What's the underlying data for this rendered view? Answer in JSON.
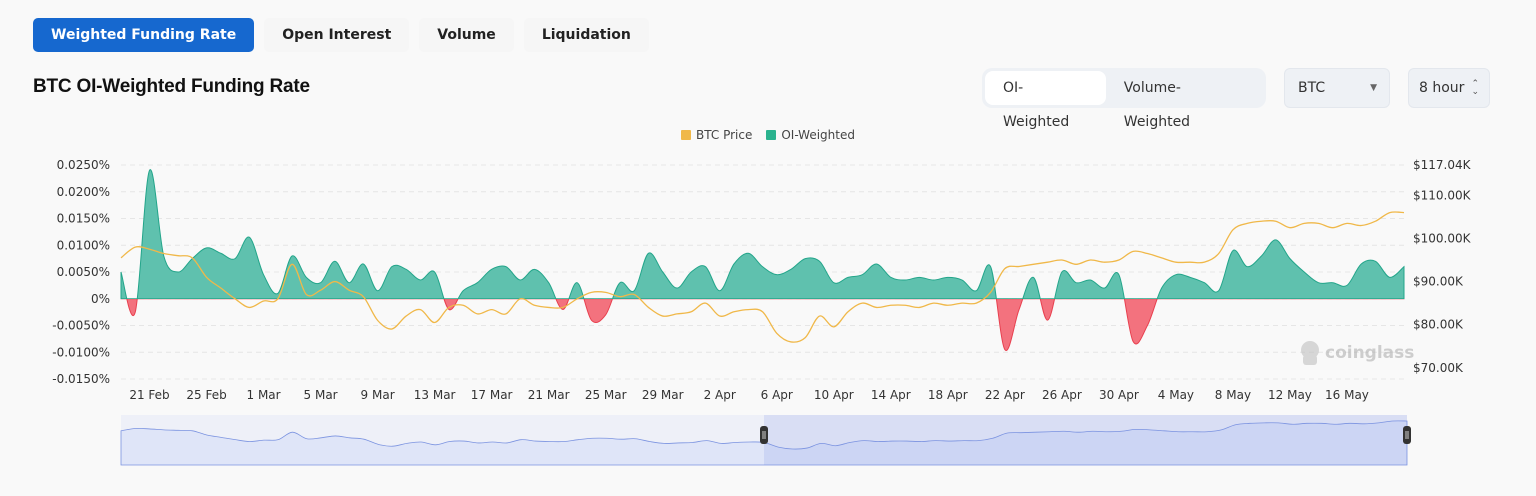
{
  "tabs": [
    {
      "label": "Weighted Funding Rate",
      "active": true
    },
    {
      "label": "Open Interest"
    },
    {
      "label": "Volume"
    },
    {
      "label": "Liquidation"
    }
  ],
  "title": "BTC OI-Weighted Funding Rate",
  "weighting": {
    "options": [
      "OI-Weighted",
      "Volume-Weighted"
    ],
    "selected": "OI-Weighted"
  },
  "symbol_select": {
    "value": "BTC",
    "icon": "caret-down-icon"
  },
  "interval_select": {
    "value": "8 hour",
    "icon": "up-down-chevron-icon"
  },
  "watermark": "coinglass",
  "colors": {
    "price": "#f0b849",
    "positive": "#5fc1ae",
    "positive_line": "#23a58a",
    "negative": "#f3727e",
    "negative_line": "#e8404f",
    "accent": "#1668cf",
    "navigator_line": "#7b93e0",
    "navigator_fill": "#dfe5f8"
  },
  "chart_data": {
    "type": "area",
    "legend": [
      "BTC Price",
      "OI-Weighted"
    ],
    "legend_placement": "top-center",
    "grid": true,
    "y_left": {
      "ticks": [
        "0.0250%",
        "0.0200%",
        "0.0150%",
        "0.0100%",
        "0.0050%",
        "0%",
        "-0.0050%",
        "-0.0100%",
        "-0.0150%"
      ],
      "tick_values": [
        0.025,
        0.02,
        0.015,
        0.01,
        0.005,
        0,
        -0.005,
        -0.01,
        -0.015
      ],
      "range": [
        -0.015,
        0.025
      ],
      "unit": "%"
    },
    "y_right": {
      "ticks": [
        "$117.04K",
        "$110.00K",
        "$100.00K",
        "$90.00K",
        "$80.00K",
        "$70.00K"
      ],
      "tick_values": [
        117.04,
        110,
        100,
        90,
        80,
        70
      ],
      "range": [
        67.4,
        117.04
      ],
      "unit": "K USD"
    },
    "x_ticks": [
      "21 Feb",
      "25 Feb",
      "1 Mar",
      "5 Mar",
      "9 Mar",
      "13 Mar",
      "17 Mar",
      "21 Mar",
      "25 Mar",
      "29 Mar",
      "2 Apr",
      "6 Apr",
      "10 Apr",
      "14 Apr",
      "18 Apr",
      "22 Apr",
      "26 Apr",
      "30 Apr",
      "4 May",
      "8 May",
      "12 May",
      "16 May"
    ],
    "x_tick_day_index": [
      2,
      6,
      10,
      14,
      18,
      22,
      26,
      30,
      34,
      38,
      42,
      46,
      50,
      54,
      58,
      62,
      66,
      70,
      74,
      78,
      82,
      86
    ],
    "x_range": [
      "19 Feb",
      "20 May"
    ],
    "series": [
      {
        "name": "OI-Weighted",
        "unit": "%",
        "values": [
          0.005,
          -0.0025,
          0.024,
          0.008,
          0.005,
          0.0075,
          0.0095,
          0.0085,
          0.0075,
          0.0115,
          0.0045,
          0.001,
          0.008,
          0.004,
          0.003,
          0.007,
          0.003,
          0.0065,
          0.0015,
          0.006,
          0.0055,
          0.0035,
          0.005,
          -0.002,
          0.0015,
          0.003,
          0.0055,
          0.006,
          0.0035,
          0.0055,
          0.003,
          -0.002,
          0.003,
          -0.004,
          -0.003,
          0.003,
          0.0015,
          0.0085,
          0.005,
          0.002,
          0.005,
          0.006,
          0.0015,
          0.0065,
          0.0085,
          0.006,
          0.0045,
          0.0055,
          0.0075,
          0.007,
          0.003,
          0.004,
          0.0045,
          0.0065,
          0.004,
          0.0035,
          0.004,
          0.0035,
          0.004,
          0.0035,
          0.0015,
          0.006,
          -0.0095,
          -0.002,
          0.004,
          -0.004,
          0.005,
          0.003,
          0.0035,
          0.002,
          0.0045,
          -0.008,
          -0.005,
          0.002,
          0.0045,
          0.004,
          0.003,
          0.0015,
          0.009,
          0.006,
          0.008,
          0.011,
          0.0075,
          0.005,
          0.003,
          0.003,
          0.0025,
          0.0065,
          0.007,
          0.004,
          0.006
        ]
      },
      {
        "name": "BTC Price",
        "unit": "K USD",
        "values": [
          95.5,
          98,
          97.5,
          96.5,
          96,
          95.5,
          91,
          88.5,
          86,
          84,
          85.5,
          86,
          94,
          87,
          88,
          90,
          88,
          86.5,
          81,
          79,
          82,
          83.5,
          80.5,
          84,
          84.5,
          82.5,
          83.5,
          82.5,
          86,
          84.5,
          84,
          84,
          86,
          87.5,
          87.5,
          86.5,
          87,
          84,
          82,
          82.5,
          83,
          85,
          82,
          83,
          83.5,
          83,
          78,
          76,
          77,
          82,
          79.5,
          83,
          85,
          84,
          84.5,
          84.5,
          84,
          85,
          84.5,
          85,
          85,
          87.5,
          93,
          93.5,
          94,
          94.5,
          95,
          94,
          95,
          94.5,
          95,
          97,
          96.5,
          95.5,
          94.5,
          94.5,
          94.5,
          96.5,
          102,
          103.5,
          104,
          104,
          102.5,
          103.5,
          103.5,
          102.5,
          103.5,
          103,
          104,
          106,
          106
        ]
      }
    ],
    "navigator": {
      "selection_start": 0.5,
      "selection_end": 1.0
    }
  }
}
